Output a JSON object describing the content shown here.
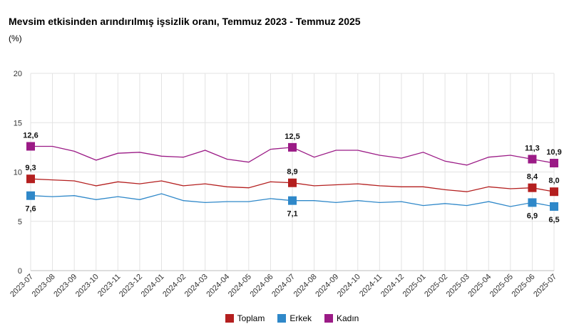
{
  "chart_data": {
    "type": "line",
    "title": "Mevsim etkisinden arındırılmış işsizlik oranı, Temmuz 2023 - Temmuz 2025",
    "subtitle": "(%)",
    "x": [
      "2023-07",
      "2023-08",
      "2023-09",
      "2023-10",
      "2023-11",
      "2023-12",
      "2024-01",
      "2024-02",
      "2024-03",
      "2024-04",
      "2024-05",
      "2024-06",
      "2024-07",
      "2024-08",
      "2024-09",
      "2024-10",
      "2024-11",
      "2024-12",
      "2025-01",
      "2025-02",
      "2025-03",
      "2025-04",
      "2025-05",
      "2025-06",
      "2025-07"
    ],
    "ylim": [
      0,
      20
    ],
    "yticks": [
      "0",
      "5",
      "10",
      "15",
      "20"
    ],
    "grid": true,
    "legend_position": "bottom-center",
    "series": [
      {
        "name": "Toplam",
        "color": "#b41f1f",
        "values": [
          9.3,
          9.2,
          9.1,
          8.6,
          9.0,
          8.8,
          9.1,
          8.6,
          8.8,
          8.5,
          8.4,
          9.0,
          8.9,
          8.6,
          8.7,
          8.8,
          8.6,
          8.5,
          8.5,
          8.2,
          8.0,
          8.5,
          8.3,
          8.4,
          8.0
        ],
        "labels": [
          {
            "i": 0,
            "text": "9,3"
          },
          {
            "i": 12,
            "text": "8,9"
          },
          {
            "i": 23,
            "text": "8,4"
          },
          {
            "i": 24,
            "text": "8,0"
          }
        ]
      },
      {
        "name": "Erkek",
        "color": "#2f88c9",
        "values": [
          7.6,
          7.5,
          7.6,
          7.2,
          7.5,
          7.2,
          7.8,
          7.1,
          6.9,
          7.0,
          7.0,
          7.3,
          7.1,
          7.1,
          6.9,
          7.1,
          6.9,
          7.0,
          6.6,
          6.8,
          6.6,
          7.0,
          6.5,
          6.9,
          6.5
        ],
        "labels": [
          {
            "i": 0,
            "text": "7,6"
          },
          {
            "i": 12,
            "text": "7,1"
          },
          {
            "i": 23,
            "text": "6,9"
          },
          {
            "i": 24,
            "text": "6,5"
          }
        ]
      },
      {
        "name": "Kadın",
        "color": "#9b1b86",
        "values": [
          12.6,
          12.6,
          12.1,
          11.2,
          11.9,
          12.0,
          11.6,
          11.5,
          12.2,
          11.3,
          11.0,
          12.3,
          12.5,
          11.5,
          12.2,
          12.2,
          11.7,
          11.4,
          12.0,
          11.1,
          10.7,
          11.5,
          11.7,
          11.3,
          10.9
        ],
        "labels": [
          {
            "i": 0,
            "text": "12,6"
          },
          {
            "i": 12,
            "text": "12,5"
          },
          {
            "i": 23,
            "text": "11,3"
          },
          {
            "i": 24,
            "text": "10,9"
          }
        ]
      }
    ]
  }
}
